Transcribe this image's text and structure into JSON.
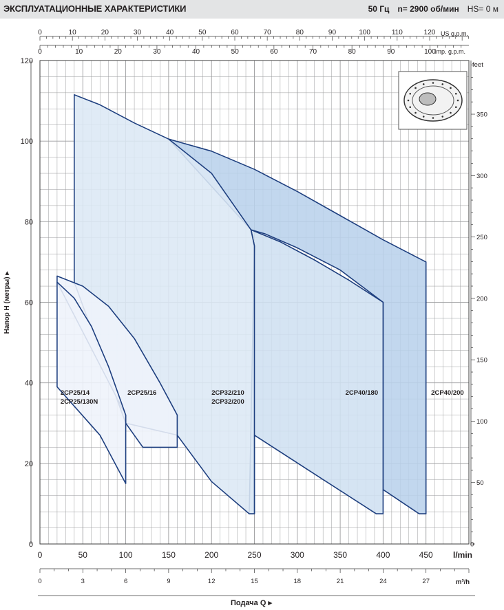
{
  "header": {
    "title": "ЭКСПЛУАТАЦИОННЫЕ ХАРАКТЕРИСТИКИ",
    "frequency": "50 Гц",
    "speed": "n= 2900 об/мин",
    "suction_head": "HS= 0 м"
  },
  "colors": {
    "grid": "#9a9b9d",
    "curve": "#1e3f7f",
    "fill_light": "#eef3fa",
    "fill_mid": "#dce8f5",
    "fill_med": "#cfe0f1",
    "fill_dark": "#b9d2ec",
    "header_bg": "#e3e4e5"
  },
  "chart_data": {
    "type": "area",
    "x_unit_primary": "l/min",
    "xlim": [
      0,
      500
    ],
    "ylim": [
      0,
      120
    ],
    "y_label": "Напор H  (метры)",
    "x_label": "Подача Q",
    "y_ticks": [
      0,
      20,
      40,
      60,
      80,
      100,
      120
    ],
    "x_ticks_lmin": [
      "0",
      "50",
      "100",
      "150",
      "200",
      "250",
      "300",
      "350",
      "400",
      "450"
    ],
    "x_unit_lmin_label": "l/min",
    "us_gpm": {
      "label": "US g.p.m.",
      "ticks": [
        "0",
        "10",
        "20",
        "30",
        "40",
        "50",
        "60",
        "70",
        "80",
        "90",
        "100",
        "110",
        "120"
      ],
      "factor": 0.264172
    },
    "imp_gpm": {
      "label": "Imp. g.p.m.",
      "ticks": [
        "0",
        "10",
        "20",
        "30",
        "40",
        "50",
        "60",
        "70",
        "80",
        "90",
        "100"
      ],
      "factor": 0.219969
    },
    "m3h": {
      "label": "m³/h",
      "ticks": [
        "0",
        "3",
        "6",
        "9",
        "12",
        "15",
        "18",
        "21",
        "24",
        "27"
      ],
      "factor": 0.06
    },
    "feet": {
      "label": "feet",
      "ticks": [
        "50",
        "100",
        "150",
        "200",
        "250",
        "300",
        "350"
      ],
      "factor": 3.28084
    },
    "grid": true,
    "series": [
      {
        "name": "2CP40/200",
        "label_lines": [
          "2CP40/200"
        ],
        "fill": "fill_dark",
        "label_at": [
          456,
          37
        ],
        "points": [
          [
            150,
            100.5
          ],
          [
            200,
            97.5
          ],
          [
            250,
            93
          ],
          [
            300,
            87.5
          ],
          [
            350,
            81.5
          ],
          [
            400,
            75.5
          ],
          [
            450,
            70
          ],
          [
            450,
            7.5
          ],
          [
            442,
            7.5
          ],
          [
            400,
            13.5
          ],
          [
            400,
            60
          ],
          [
            350,
            68
          ],
          [
            300,
            73.5
          ],
          [
            262,
            77
          ],
          [
            246,
            78
          ]
        ]
      },
      {
        "name": "2CP40/180",
        "label_lines": [
          "2CP40/180"
        ],
        "fill": "fill_med",
        "label_at": [
          356,
          37
        ],
        "points": [
          [
            246,
            78
          ],
          [
            280,
            75
          ],
          [
            320,
            70.5
          ],
          [
            360,
            65.5
          ],
          [
            400,
            60
          ],
          [
            400,
            7.5
          ],
          [
            392,
            7.5
          ],
          [
            330,
            16
          ],
          [
            250,
            27
          ],
          [
            250,
            7.5
          ],
          [
            244,
            7.5
          ],
          [
            250,
            74
          ]
        ]
      },
      {
        "name": "2CP32/210",
        "label_lines": [
          "2CP32/210",
          "2CP32/200"
        ],
        "fill": "fill_mid",
        "label_at": [
          200,
          37
        ],
        "points": [
          [
            40,
            111.5
          ],
          [
            70,
            109
          ],
          [
            110,
            104.5
          ],
          [
            150,
            100.5
          ],
          [
            200,
            92
          ],
          [
            246,
            78
          ],
          [
            250,
            74
          ],
          [
            250,
            7.5
          ],
          [
            244,
            7.5
          ],
          [
            200,
            15.5
          ],
          [
            160,
            27
          ],
          [
            100,
            30
          ],
          [
            40,
            65
          ]
        ]
      },
      {
        "name": "2CP25/16",
        "label_lines": [
          "2CP25/16"
        ],
        "fill": "fill_light",
        "label_at": [
          102,
          37
        ],
        "points": [
          [
            20,
            66.5
          ],
          [
            50,
            64
          ],
          [
            80,
            59
          ],
          [
            110,
            51
          ],
          [
            140,
            40
          ],
          [
            160,
            32
          ],
          [
            160,
            24
          ],
          [
            120,
            24
          ],
          [
            100,
            30
          ],
          [
            100,
            32
          ],
          [
            20,
            65
          ]
        ]
      },
      {
        "name": "2CP25/14",
        "label_lines": [
          "2CP25/14",
          "2CP25/130N"
        ],
        "fill": "fill_light",
        "label_at": [
          24,
          37
        ],
        "points": [
          [
            20,
            65
          ],
          [
            40,
            61
          ],
          [
            60,
            54
          ],
          [
            80,
            44
          ],
          [
            100,
            32
          ],
          [
            100,
            15
          ],
          [
            70,
            27
          ],
          [
            20,
            39
          ]
        ]
      }
    ]
  }
}
